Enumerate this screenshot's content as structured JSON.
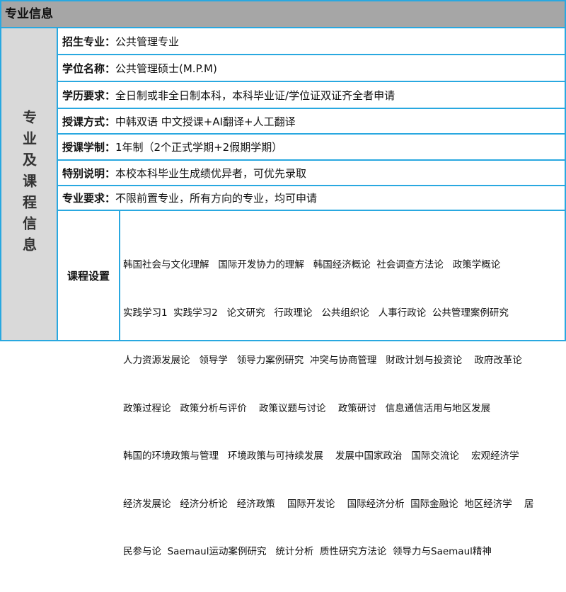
{
  "header": {
    "title": "专业信息"
  },
  "side_label": "专业及课程信息",
  "rows": [
    {
      "label": "招生专业：",
      "value": "公共管理专业"
    },
    {
      "label": "学位名称：",
      "value": "公共管理硕士(M.P.M)"
    },
    {
      "label": "学历要求：",
      "value": "全日制或非全日制本科，本科毕业证/学位证双证齐全者申请"
    },
    {
      "label": "授课方式：",
      "value": "中韩双语 中文授课+AI翻译+人工翻译"
    },
    {
      "label": "授课学制：",
      "value": "1年制（2个正式学期+2假期学期）"
    },
    {
      "label": "特别说明：",
      "value": "本校本科毕业生成绩优异者，可优先录取"
    },
    {
      "label": "专业要求：",
      "value": "不限前置专业，所有方向的专业，均可申请"
    }
  ],
  "courses": {
    "label": "课程设置",
    "lines": [
      "韩国社会与文化理解   国际开发协力的理解   韩国经济概论  社会调查方法论   政策学概论",
      "实践学习1  实践学习2   论文研究   行政理论   公共组织论   人事行政论  公共管理案例研究",
      "人力资源发展论   领导学   领导力案例研究  冲突与协商管理   财政计划与投资论    政府改革论",
      "政策过程论   政策分析与评价    政策议题与讨论    政策研讨   信息通信活用与地区发展",
      "韩国的环境政策与管理   环境政策与可持续发展    发展中国家政治   国际交流论    宏观经济学",
      "经济发展论   经济分析论   经济政策    国际开发论    国际经济分析  国际金融论  地区经济学    居",
      "民参与论  Saemaul运动案例研究   统计分析  质性研究方法论  领导力与Saemaul精神"
    ]
  },
  "colors": {
    "border": "#29a8e0",
    "header_bg": "#a6a6a6",
    "side_bg": "#d9d9d9"
  }
}
